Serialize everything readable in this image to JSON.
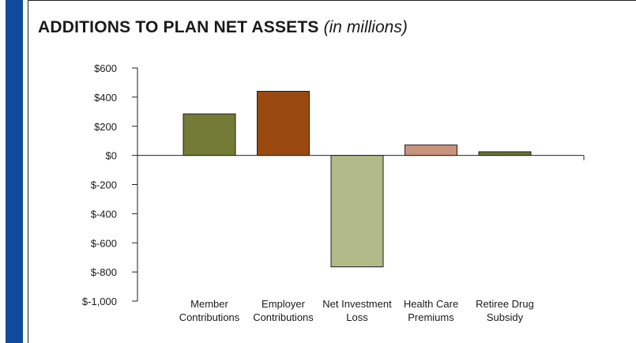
{
  "chart_data": {
    "type": "bar",
    "title": "ADDITIONS TO PLAN NET ASSETS",
    "subtitle": "(in millions)",
    "xlabel": "",
    "ylabel": "",
    "categories": [
      [
        "Member",
        "Contributions"
      ],
      [
        "Employer",
        "Contributions"
      ],
      [
        "Net Investment",
        "Loss"
      ],
      [
        "Health Care",
        "Premiums"
      ],
      [
        "Retiree Drug",
        "Subsidy"
      ]
    ],
    "values": [
      285,
      440,
      -765,
      72,
      25
    ],
    "colors": [
      "#737b36",
      "#9a4a10",
      "#b3ba8a",
      "#c8937a",
      "#6b7432"
    ],
    "ylim": [
      -1000,
      600
    ],
    "ytick_values": [
      600,
      400,
      200,
      0,
      -200,
      -400,
      -600,
      -800,
      -1000
    ],
    "ytick_labels": [
      "$600",
      "$400",
      "$200",
      "$0",
      "$-200",
      "$-400",
      "$-600",
      "$-800",
      "$-1,000"
    ],
    "grid": false,
    "legend": "none"
  },
  "accent_color": "#0f4a9c"
}
